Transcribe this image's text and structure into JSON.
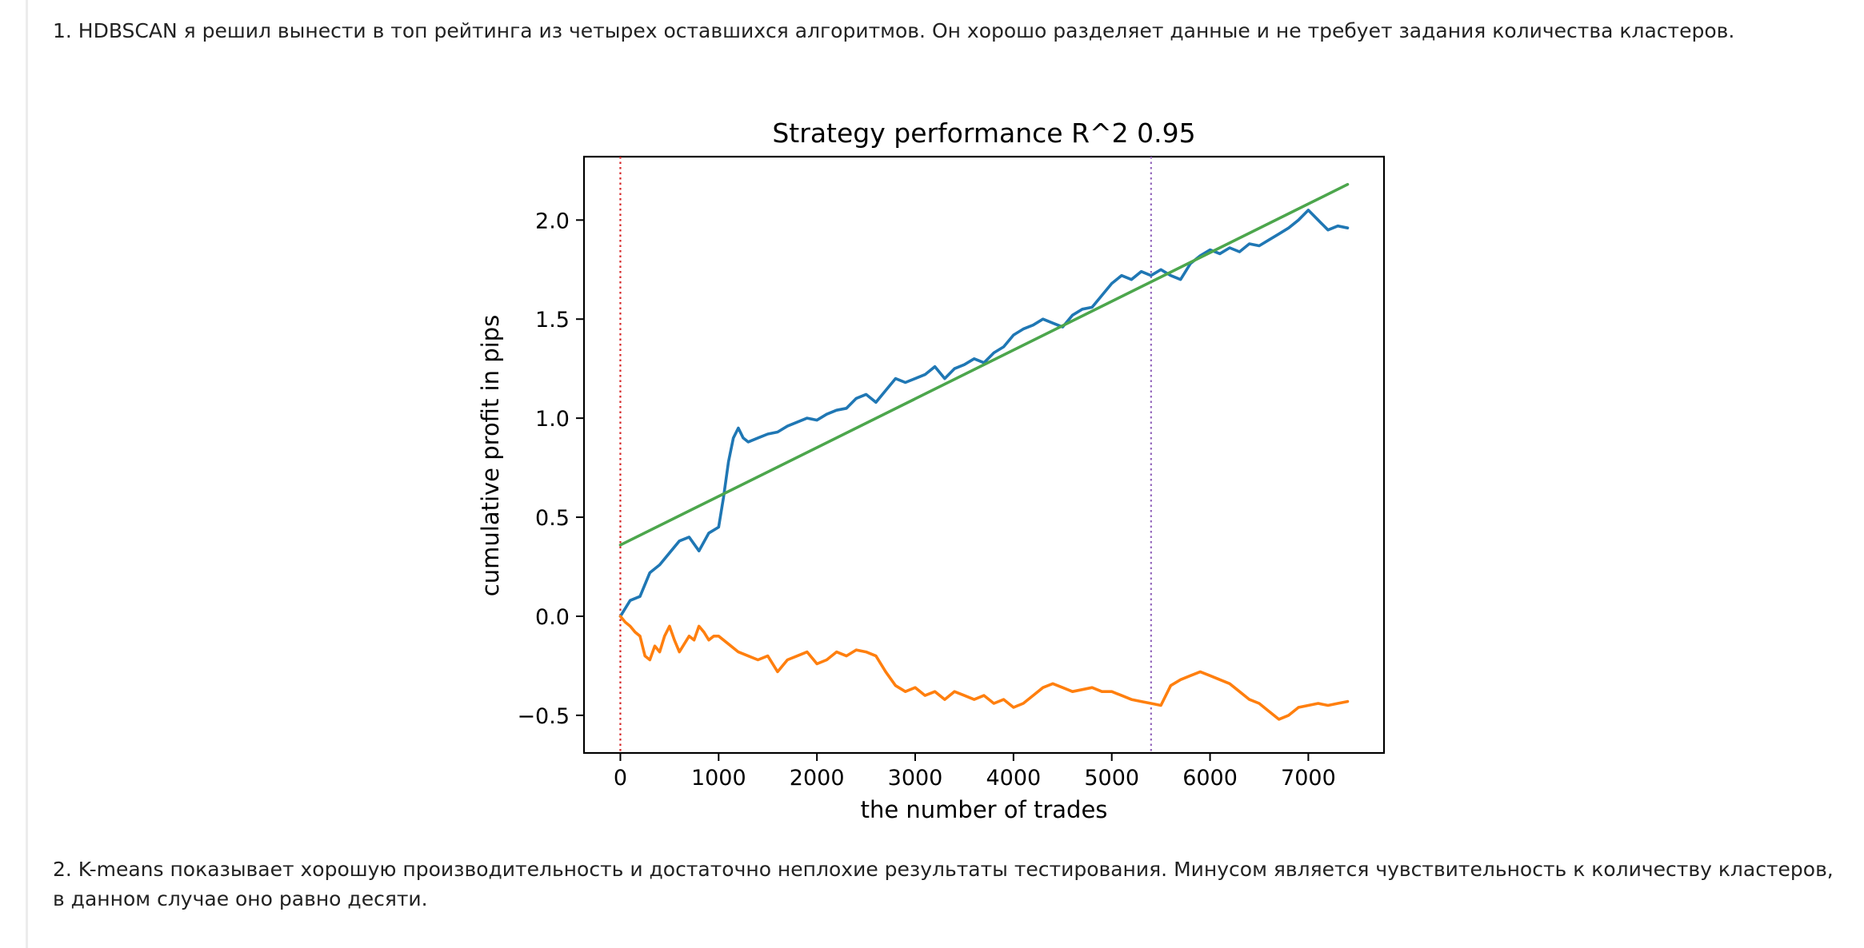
{
  "article": {
    "paragraph_1": "1. HDBSCAN я решил вынести в топ рейтинга из четырех оставшихся алгоритмов. Он хорошо разделяет данные и не требует задания количества кластеров.",
    "paragraph_2": "2. K-means показывает хорошую производительность и достаточно неплохие результаты тестирования. Минусом является чувствительность к количеству кластеров, в данном случае оно равно десяти."
  },
  "chart_data": {
    "type": "line",
    "title": "Strategy performance R^2 0.95",
    "xlabel": "the number of trades",
    "ylabel": "cumulative profit in pips",
    "xlim": [
      -370,
      7770
    ],
    "ylim": [
      -0.69,
      2.32
    ],
    "xticks": [
      0,
      1000,
      2000,
      3000,
      4000,
      5000,
      6000,
      7000
    ],
    "xtick_labels": [
      "0",
      "1000",
      "2000",
      "3000",
      "4000",
      "5000",
      "6000",
      "7000"
    ],
    "yticks": [
      -0.5,
      0.0,
      0.5,
      1.0,
      1.5,
      2.0
    ],
    "ytick_labels": [
      "−0.5",
      "0.0",
      "0.5",
      "1.0",
      "1.5",
      "2.0"
    ],
    "grid": false,
    "legend": "none",
    "vlines": [
      {
        "x": 0,
        "color": "#d62728",
        "style": "dotted"
      },
      {
        "x": 5400,
        "color": "#9467bd",
        "style": "dotted"
      }
    ],
    "series": [
      {
        "color": "#1f77b4",
        "x": [
          0,
          100,
          200,
          300,
          400,
          500,
          600,
          700,
          800,
          900,
          1000,
          1050,
          1100,
          1150,
          1200,
          1250,
          1300,
          1400,
          1500,
          1600,
          1700,
          1800,
          1900,
          2000,
          2100,
          2200,
          2300,
          2400,
          2500,
          2600,
          2700,
          2800,
          2900,
          3000,
          3100,
          3200,
          3300,
          3400,
          3500,
          3600,
          3700,
          3800,
          3900,
          4000,
          4100,
          4200,
          4300,
          4400,
          4500,
          4600,
          4700,
          4800,
          4900,
          5000,
          5100,
          5200,
          5300,
          5400,
          5500,
          5600,
          5700,
          5800,
          5900,
          6000,
          6100,
          6200,
          6300,
          6400,
          6500,
          6600,
          6700,
          6800,
          6900,
          7000,
          7100,
          7200,
          7300,
          7400
        ],
        "y": [
          0.0,
          0.08,
          0.1,
          0.22,
          0.26,
          0.32,
          0.38,
          0.4,
          0.33,
          0.42,
          0.45,
          0.6,
          0.78,
          0.9,
          0.95,
          0.9,
          0.88,
          0.9,
          0.92,
          0.93,
          0.96,
          0.98,
          1.0,
          0.99,
          1.02,
          1.04,
          1.05,
          1.1,
          1.12,
          1.08,
          1.14,
          1.2,
          1.18,
          1.2,
          1.22,
          1.26,
          1.2,
          1.25,
          1.27,
          1.3,
          1.28,
          1.33,
          1.36,
          1.42,
          1.45,
          1.47,
          1.5,
          1.48,
          1.46,
          1.52,
          1.55,
          1.56,
          1.62,
          1.68,
          1.72,
          1.7,
          1.74,
          1.72,
          1.75,
          1.72,
          1.7,
          1.78,
          1.82,
          1.85,
          1.83,
          1.86,
          1.84,
          1.88,
          1.87,
          1.9,
          1.93,
          1.96,
          2.0,
          2.05,
          2.0,
          1.95,
          1.97,
          1.96
        ]
      },
      {
        "color": "#ff7f0e",
        "x": [
          0,
          50,
          100,
          150,
          200,
          250,
          300,
          350,
          400,
          450,
          500,
          550,
          600,
          650,
          700,
          750,
          800,
          850,
          900,
          950,
          1000,
          1100,
          1200,
          1300,
          1400,
          1500,
          1600,
          1700,
          1800,
          1900,
          2000,
          2100,
          2200,
          2300,
          2400,
          2500,
          2600,
          2700,
          2800,
          2900,
          3000,
          3100,
          3200,
          3300,
          3400,
          3500,
          3600,
          3700,
          3800,
          3900,
          4000,
          4100,
          4200,
          4300,
          4400,
          4500,
          4600,
          4700,
          4800,
          4900,
          5000,
          5100,
          5200,
          5300,
          5400,
          5500,
          5600,
          5700,
          5800,
          5900,
          6000,
          6100,
          6200,
          6300,
          6400,
          6500,
          6600,
          6700,
          6800,
          6900,
          7000,
          7100,
          7200,
          7300,
          7400
        ],
        "y": [
          0.0,
          -0.03,
          -0.05,
          -0.08,
          -0.1,
          -0.2,
          -0.22,
          -0.15,
          -0.18,
          -0.1,
          -0.05,
          -0.12,
          -0.18,
          -0.14,
          -0.1,
          -0.12,
          -0.05,
          -0.08,
          -0.12,
          -0.1,
          -0.1,
          -0.14,
          -0.18,
          -0.2,
          -0.22,
          -0.2,
          -0.28,
          -0.22,
          -0.2,
          -0.18,
          -0.24,
          -0.22,
          -0.18,
          -0.2,
          -0.17,
          -0.18,
          -0.2,
          -0.28,
          -0.35,
          -0.38,
          -0.36,
          -0.4,
          -0.38,
          -0.42,
          -0.38,
          -0.4,
          -0.42,
          -0.4,
          -0.44,
          -0.42,
          -0.46,
          -0.44,
          -0.4,
          -0.36,
          -0.34,
          -0.36,
          -0.38,
          -0.37,
          -0.36,
          -0.38,
          -0.38,
          -0.4,
          -0.42,
          -0.43,
          -0.44,
          -0.45,
          -0.35,
          -0.32,
          -0.3,
          -0.28,
          -0.3,
          -0.32,
          -0.34,
          -0.38,
          -0.42,
          -0.44,
          -0.48,
          -0.52,
          -0.5,
          -0.46,
          -0.45,
          -0.44,
          -0.45,
          -0.44,
          -0.43
        ]
      },
      {
        "color": "#4ca64c",
        "x": [
          0,
          7400
        ],
        "y": [
          0.36,
          2.18
        ]
      }
    ]
  }
}
